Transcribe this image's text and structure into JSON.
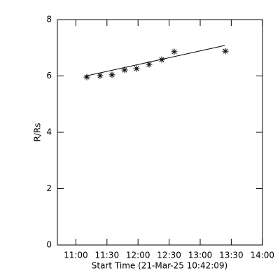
{
  "chart_data": {
    "type": "scatter",
    "xlabel": "Start Time (21-Mar-25 10:42:09)",
    "ylabel": "R/Rs",
    "x": [
      28.4,
      41.2,
      52.7,
      64.9,
      76.4,
      88.5,
      100.7,
      112.8,
      162.2
    ],
    "values": [
      5.96,
      6.01,
      6.04,
      6.21,
      6.26,
      6.41,
      6.58,
      6.86,
      6.88
    ],
    "color": "#000000",
    "fit_line": {
      "x": [
        26.4,
        161.5
      ],
      "values": [
        5.99,
        7.08
      ]
    },
    "xlim": [
      0,
      198
    ],
    "xticks": [
      {
        "value": 17.85,
        "label": "11:00"
      },
      {
        "value": 47.85,
        "label": "11:30"
      },
      {
        "value": 77.85,
        "label": "12:00"
      },
      {
        "value": 107.85,
        "label": "12:30"
      },
      {
        "value": 137.85,
        "label": "13:00"
      },
      {
        "value": 167.85,
        "label": "13:30"
      },
      {
        "value": 197.85,
        "label": "14:00"
      }
    ],
    "ylim": [
      0,
      8
    ],
    "yticks": [
      0,
      2,
      4,
      6,
      8
    ]
  }
}
